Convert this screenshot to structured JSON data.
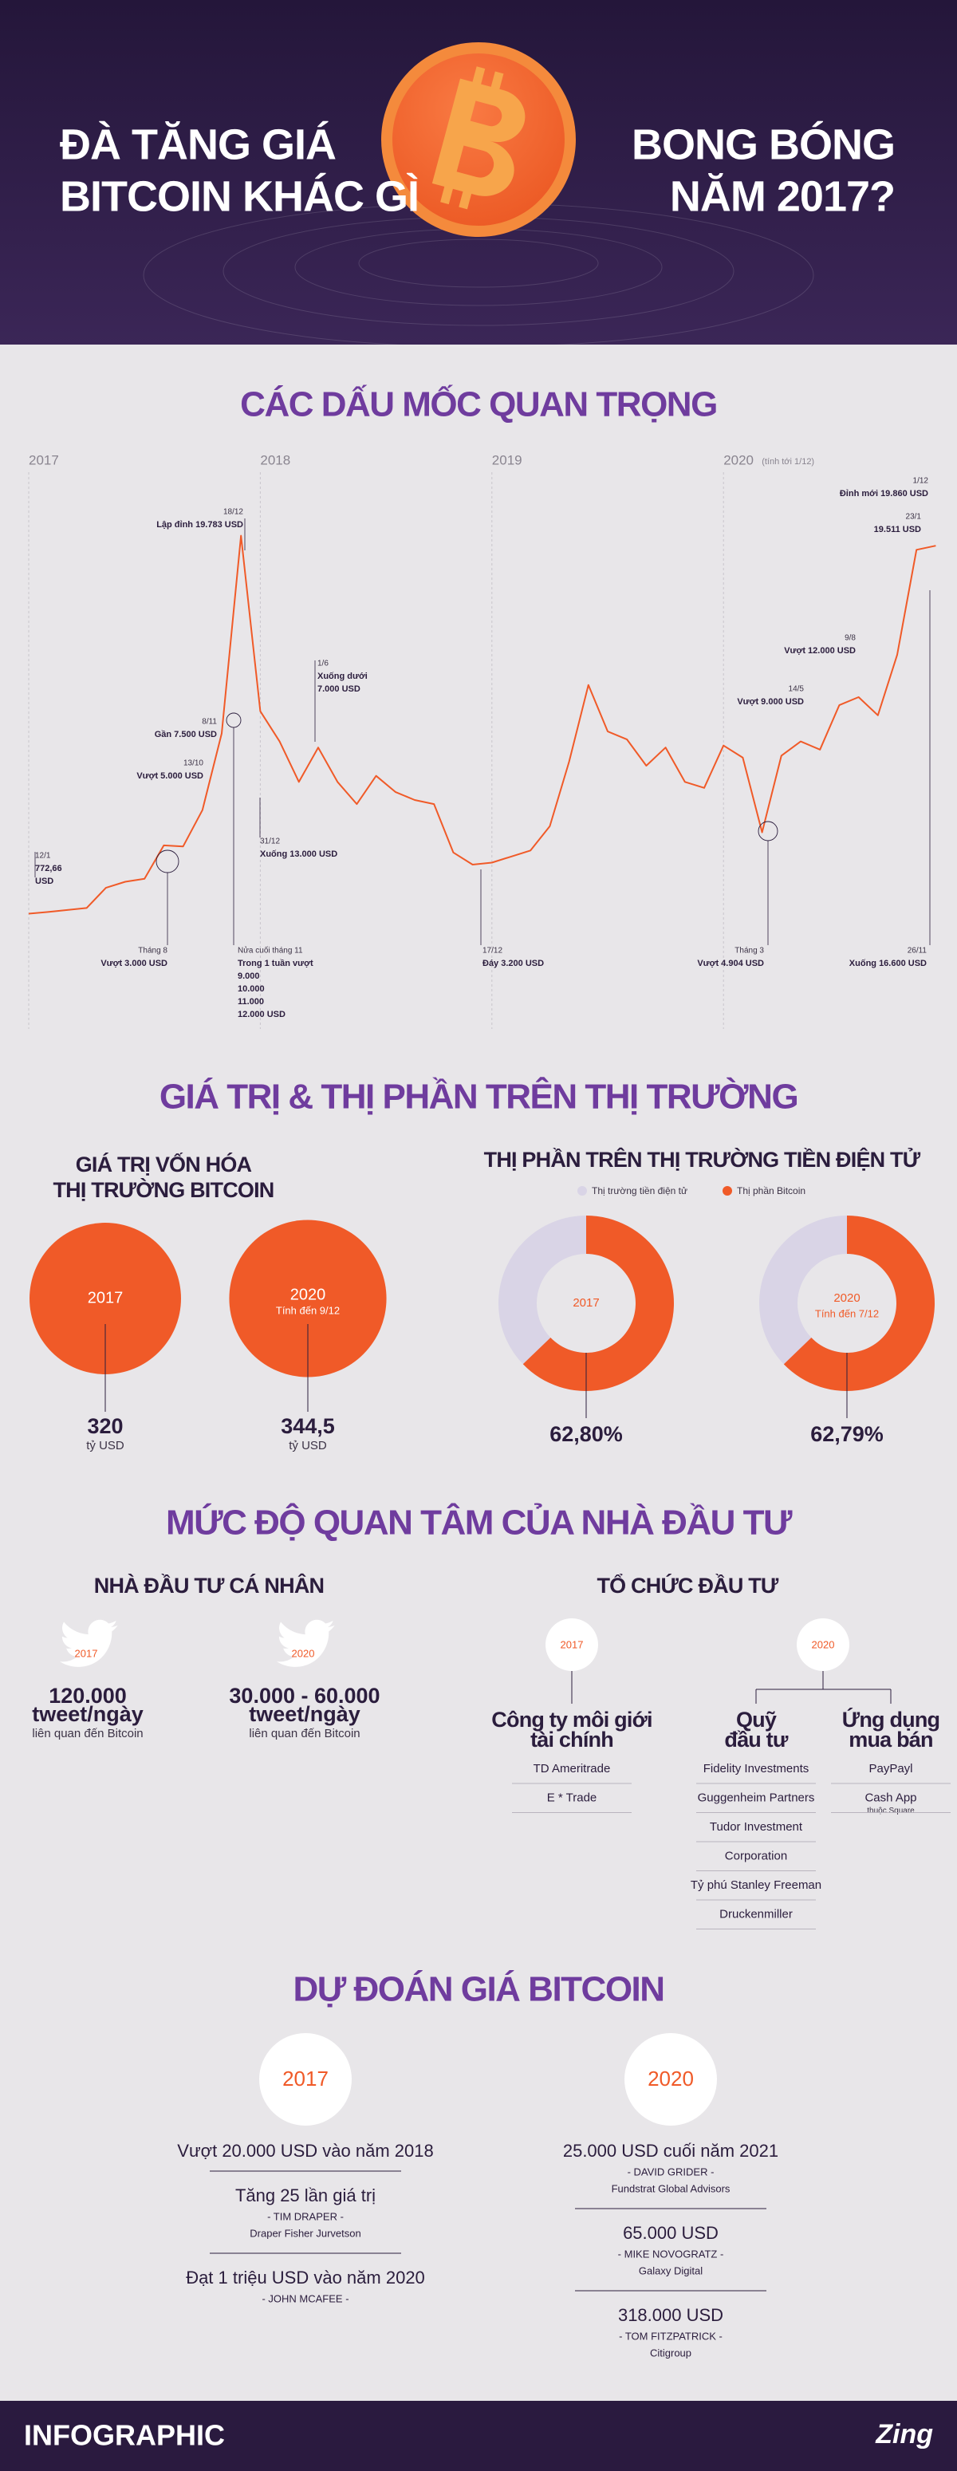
{
  "header": {
    "title_left": [
      "ĐÀ TĂNG GIÁ",
      "BITCOIN KHÁC GÌ"
    ],
    "title_right": [
      "BONG BÓNG",
      "NĂM 2017?"
    ]
  },
  "milestones": {
    "title": "CÁC DẤU MỐC QUAN TRỌNG"
  },
  "market": {
    "title": "GIÁ TRỊ & THỊ PHẦN TRÊN THỊ TRƯỜNG"
  },
  "chart_data": [
    {
      "type": "line",
      "categories": [
        "2017",
        null,
        null,
        null,
        null,
        null,
        null,
        null,
        null,
        null,
        null,
        null,
        "2018",
        null,
        null,
        null,
        null,
        null,
        null,
        null,
        null,
        null,
        null,
        null,
        "2019",
        null,
        null,
        null,
        null,
        null,
        null,
        null,
        null,
        null,
        null,
        null,
        "2020",
        null,
        null,
        null,
        null,
        null,
        null,
        null,
        null,
        null,
        null,
        null
      ],
      "category_note": "(tính tới 1/12)",
      "values": [
        970,
        1050,
        1150,
        1250,
        2250,
        2550,
        2700,
        4350,
        4300,
        6100,
        9900,
        19700,
        11000,
        9500,
        7500,
        9200,
        7500,
        6400,
        7800,
        7000,
        6600,
        6400,
        4000,
        3400,
        3500,
        3800,
        4100,
        5300,
        8500,
        12300,
        10000,
        9600,
        8300,
        9200,
        7500,
        7200,
        9300,
        8700,
        5000,
        8800,
        9500,
        9100,
        11300,
        11700,
        10800,
        13800,
        19000,
        19200
      ],
      "color": "#f05a28",
      "ylim": [
        0,
        20000
      ],
      "annotations": [
        {
          "lines": [
            "12/1",
            "772,66",
            "USD"
          ]
        },
        {
          "lines": [
            "Tháng 8",
            "Vượt 3.000 USD"
          ]
        },
        {
          "lines": [
            "13/10",
            "Vượt 5.000 USD"
          ]
        },
        {
          "lines": [
            "8/11",
            "Gần 7.500 USD"
          ]
        },
        {
          "lines": [
            "18/12",
            "Lập đỉnh 19.783 USD"
          ]
        },
        {
          "lines": [
            "Nửa cuối tháng 11",
            "Trong 1 tuần vượt",
            "9.000",
            "10.000",
            "11.000",
            "12.000 USD"
          ]
        },
        {
          "lines": [
            "31/12",
            "Xuống 13.000 USD"
          ]
        },
        {
          "lines": [
            "1/6",
            "Xuống dưới",
            "7.000 USD"
          ]
        },
        {
          "lines": [
            "17/12",
            "Đáy 3.200 USD"
          ]
        },
        {
          "lines": [
            "Tháng 3",
            "Vượt 4.904 USD"
          ]
        },
        {
          "lines": [
            "14/5",
            "Vượt 9.000 USD"
          ]
        },
        {
          "lines": [
            "9/8",
            "Vượt 12.000 USD"
          ]
        },
        {
          "lines": [
            "1/12",
            "Đỉnh mới 19.860 USD"
          ]
        },
        {
          "lines": [
            "23/1",
            "19.511 USD"
          ]
        },
        {
          "lines": [
            "26/11",
            "Xuống 16.600 USD"
          ]
        }
      ]
    },
    {
      "type": "bubble",
      "title": [
        "GIÁ TRỊ VỐN HÓA",
        "THỊ TRƯỜNG BITCOIN"
      ],
      "categories": [
        "2017",
        "2020"
      ],
      "notes": [
        null,
        "Tính đến 9/12"
      ],
      "values": [
        320,
        344.5
      ],
      "value_labels": [
        "320",
        "344,5"
      ],
      "unit": "tỷ USD",
      "color": "#f05a28"
    },
    {
      "type": "donut",
      "title": "THỊ PHẦN TRÊN THỊ TRƯỜNG TIỀN ĐIỆN TỬ",
      "categories": [
        "2017",
        "2020"
      ],
      "notes": [
        null,
        "Tính đến 7/12"
      ],
      "series": [
        {
          "name": "Thị trường tiền điện tử",
          "color": "#d9d4e6"
        },
        {
          "name": "Thị phần Bitcoin",
          "color": "#f05a28",
          "values": [
            62.8,
            62.79
          ],
          "value_labels": [
            "62,80%",
            "62,79%"
          ]
        }
      ]
    }
  ],
  "interest": {
    "title": "MỨC ĐỘ QUAN TÂM CỦA NHÀ ĐẦU TƯ",
    "individual": {
      "title": "NHÀ ĐẦU TƯ CÁ NHÂN",
      "items": [
        {
          "year": "2017",
          "count": "120.000",
          "unit": "tweet/ngày",
          "note": "liên quan đến Bitcoin"
        },
        {
          "year": "2020",
          "count": "30.000 - 60.000",
          "unit": "tweet/ngày",
          "note": "liên quan đến Bitcoin"
        }
      ]
    },
    "institutional": {
      "title": "TỔ CHỨC ĐẦU TƯ",
      "groups": [
        {
          "year": "2017",
          "columns": [
            {
              "label": [
                "Công ty môi giới",
                "tài chính"
              ],
              "items": [
                [
                  "TD Ameritrade"
                ],
                [
                  "E * Trade"
                ]
              ]
            }
          ]
        },
        {
          "year": "2020",
          "columns": [
            {
              "label": [
                "Quỹ",
                "đầu tư"
              ],
              "items": [
                [
                  "Fidelity Investments"
                ],
                [
                  "Guggenheim Partners"
                ],
                [
                  "Tudor Investment"
                ],
                [
                  "Corporation"
                ],
                [
                  "Tỷ phú Stanley Freeman"
                ],
                [
                  "Druckenmiller"
                ]
              ]
            },
            {
              "label": [
                "Ứng dụng",
                "mua bán"
              ],
              "items": [
                [
                  "PayPayl"
                ],
                [
                  "Cash App",
                  "thuộc Square"
                ]
              ]
            }
          ]
        }
      ]
    }
  },
  "forecast": {
    "title": "DỰ ĐOÁN GIÁ BITCOIN",
    "columns": [
      {
        "year": "2017",
        "items": [
          {
            "claim": "Vượt 20.000 USD vào năm 2018"
          },
          {
            "claim": "Tăng 25 lần giá trị",
            "author": "- TIM DRAPER -",
            "org": "Draper Fisher Jurvetson"
          },
          {
            "claim": "Đạt 1 triệu USD vào năm 2020",
            "author": "- JOHN MCAFEE -"
          }
        ]
      },
      {
        "year": "2020",
        "items": [
          {
            "claim": "25.000 USD cuối năm 2021",
            "author": "- DAVID GRIDER -",
            "org": "Fundstrat Global Advisors"
          },
          {
            "claim": "65.000 USD",
            "author": "- MIKE NOVOGRATZ -",
            "org": "Galaxy Digital"
          },
          {
            "claim": "318.000 USD",
            "author": "- TOM FITZPATRICK -",
            "org": "Citigroup"
          }
        ]
      }
    ]
  },
  "footer": {
    "brand": "INFOGRAPHIC",
    "logo": "Zing"
  }
}
